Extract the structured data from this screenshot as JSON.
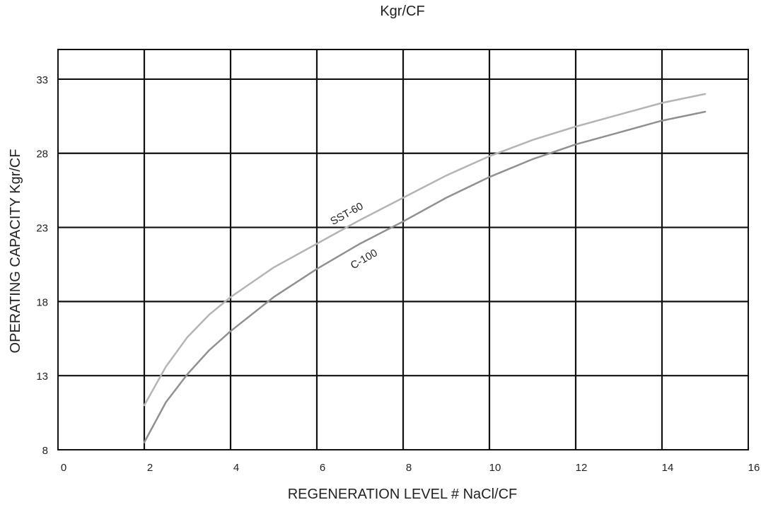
{
  "chart_data": {
    "type": "line",
    "title": "Kgr/CF",
    "xlabel": "REGENERATION LEVEL # NaCl/CF",
    "ylabel": "OPERATING CAPACITY Kgr/CF",
    "xlim": [
      0,
      16
    ],
    "ylim": [
      8,
      35
    ],
    "x_ticks": [
      0,
      2,
      4,
      6,
      8,
      10,
      12,
      14,
      16
    ],
    "y_ticks": [
      8,
      13,
      18,
      23,
      28,
      33
    ],
    "grid": true,
    "series": [
      {
        "name": "SST-60",
        "color": "#b4b4b4",
        "x": [
          2,
          2.5,
          3,
          3.5,
          4,
          5,
          6,
          7,
          8,
          9,
          10,
          11,
          12,
          13,
          14,
          15
        ],
        "y": [
          11,
          13.6,
          15.6,
          17.1,
          18.3,
          20.3,
          21.9,
          23.5,
          25.0,
          26.5,
          27.8,
          28.9,
          29.8,
          30.6,
          31.4,
          32.0
        ]
      },
      {
        "name": "C-100",
        "color": "#909090",
        "x": [
          2,
          2.5,
          3,
          3.5,
          4,
          5,
          6,
          7,
          8,
          9,
          10,
          11,
          12,
          13,
          14,
          15
        ],
        "y": [
          8.5,
          11.2,
          13.1,
          14.7,
          16.0,
          18.3,
          20.2,
          21.9,
          23.4,
          25.0,
          26.4,
          27.6,
          28.6,
          29.4,
          30.2,
          30.8
        ]
      }
    ]
  }
}
